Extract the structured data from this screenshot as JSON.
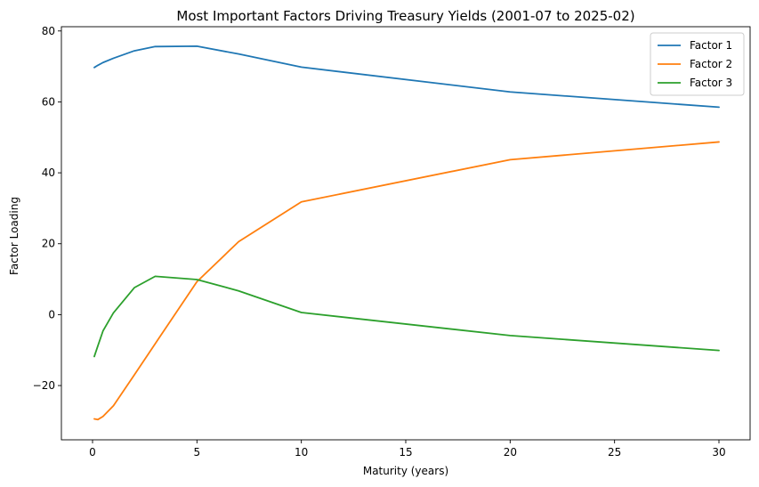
{
  "chart_data": {
    "type": "line",
    "title": "Most Important Factors Driving Treasury Yields (2001-07 to 2025-02)",
    "xlabel": "Maturity (years)",
    "ylabel": "Factor Loading",
    "xlim": [
      -1.4917,
      31.4917
    ],
    "ylim": [
      -35.3,
      81.2
    ],
    "xticks": [
      0,
      5,
      10,
      15,
      20,
      25,
      30
    ],
    "xtick_labels": [
      "0",
      "5",
      "10",
      "15",
      "20",
      "25",
      "30"
    ],
    "yticks": [
      -20,
      0,
      20,
      40,
      60,
      80
    ],
    "ytick_labels": [
      "−20",
      "0",
      "20",
      "40",
      "60",
      "80"
    ],
    "grid": false,
    "legend_position": "top-right",
    "x": [
      0.0833,
      0.25,
      0.5,
      1,
      2,
      3,
      5,
      7,
      10,
      20,
      30
    ],
    "series": [
      {
        "name": "Factor 1",
        "color": "#1f77b4",
        "values": [
          69.7,
          70.3,
          71.1,
          72.3,
          74.4,
          75.6,
          75.7,
          73.5,
          69.8,
          62.8,
          58.5
        ]
      },
      {
        "name": "Factor 2",
        "color": "#ff7f0e",
        "values": [
          -29.4,
          -29.6,
          -28.7,
          -25.7,
          -17.0,
          -8.2,
          9.3,
          20.6,
          31.8,
          43.7,
          48.7
        ]
      },
      {
        "name": "Factor 3",
        "color": "#2ca02c",
        "values": [
          -11.8,
          -8.9,
          -4.6,
          0.5,
          7.6,
          10.8,
          9.9,
          6.7,
          0.6,
          -5.9,
          -10.1
        ]
      }
    ]
  }
}
